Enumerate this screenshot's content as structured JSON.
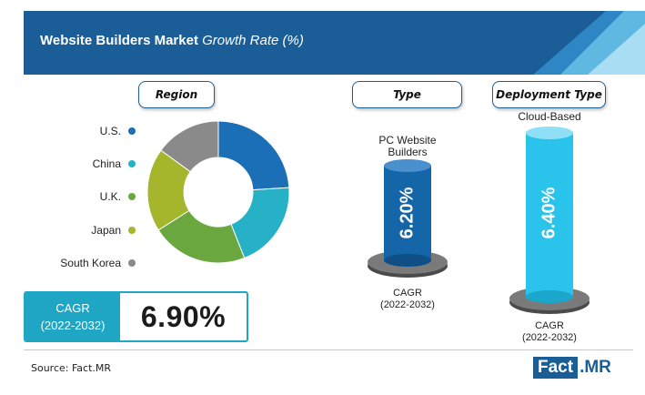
{
  "header": {
    "title_bold": "Website Builders Market",
    "title_italic": "Growth Rate (%)"
  },
  "sections": {
    "region": "Region",
    "type": "Type",
    "deployment": "Deployment Type"
  },
  "colors": {
    "banner": "#1a5d97",
    "accent": "#1fa6c4",
    "us": "#1a6fb6",
    "china": "#26b1c6",
    "uk": "#6aa83f",
    "japan": "#a5b52c",
    "south_korea": "#8a8a8a",
    "pc_cylinder": "#1565a9",
    "cloud_cylinder": "#29c3ec"
  },
  "chart_data": [
    {
      "type": "pie",
      "variant": "donut",
      "categories": [
        "U.S.",
        "China",
        "U.K.",
        "Japan",
        "South Korea"
      ],
      "values": [
        24,
        20,
        22,
        19,
        15
      ],
      "legend_placement": "left",
      "cagr_label": "CAGR",
      "cagr_period": "(2022-2032)",
      "cagr_value": "6.90%"
    },
    {
      "type": "bar",
      "variant": "cylinder",
      "categories": [
        "PC Website Builders",
        "Cloud-Based"
      ],
      "values": [
        6.2,
        6.4
      ],
      "value_labels": [
        "6.20%",
        "6.40%"
      ],
      "cagr_label": "CAGR",
      "cagr_period": "(2022-2032)"
    }
  ],
  "footer": {
    "source": "Source: Fact.MR",
    "logo_a": "Fact",
    "logo_b": ".MR"
  }
}
